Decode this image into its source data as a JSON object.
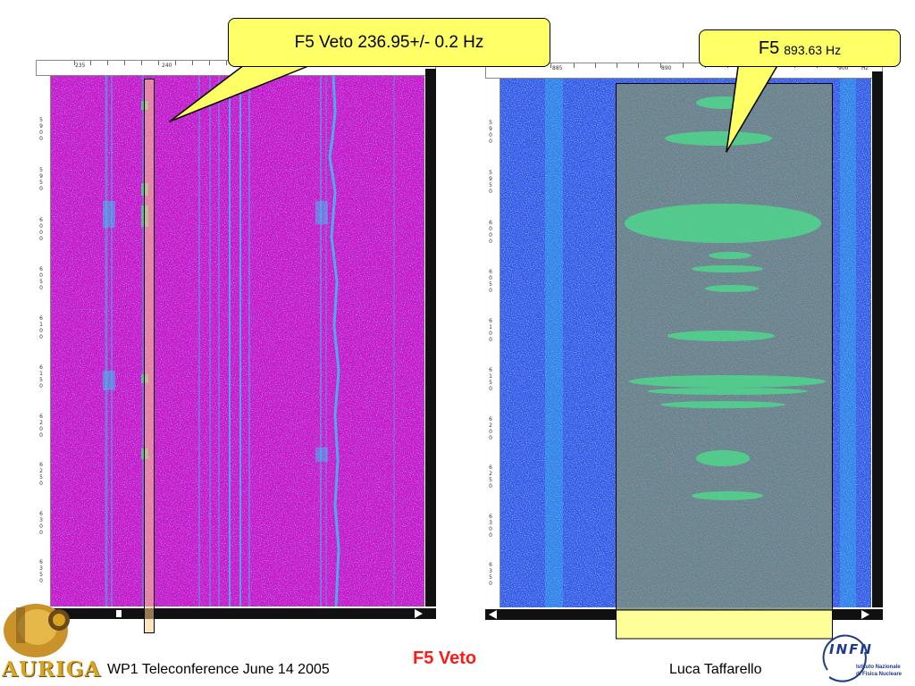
{
  "left_panel": {
    "freq_labels": [
      "235",
      "240"
    ],
    "time_labels": [
      "5900",
      "5950",
      "6000",
      "6050",
      "6100",
      "6150",
      "6200",
      "6250",
      "6300",
      "6350"
    ],
    "bg_color": "#cc19cc",
    "line_color": "#33c8f0"
  },
  "right_panel": {
    "freq_labels": [
      "885",
      "890",
      "895",
      "900"
    ],
    "unit_label": "Hz",
    "time_labels": [
      "5900",
      "5950",
      "6000",
      "6050",
      "6100",
      "6150",
      "6200",
      "6250",
      "6300",
      "6350"
    ],
    "bg_color": "#3a58e6",
    "highlight_color": "#4be08c"
  },
  "callouts": {
    "left": {
      "text": "F5 Veto 236.95+/- 0.2 Hz"
    },
    "right": {
      "prefix": "F5",
      "value": "893.63 Hz"
    }
  },
  "footer": {
    "event": "WP1 Teleconference June 14 2005",
    "title": "F5 Veto",
    "author": "Luca Taffarello",
    "auriga_logo_text": "AURIGA",
    "infn_logo_text": "INFN",
    "infn_subtext_1": "Istituto Nazionale",
    "infn_subtext_2": "di Fisica Nucleare"
  },
  "colors": {
    "callout_fill": "#ffff66",
    "title_red": "#ff1a1a",
    "auriga_gold": "#d9a420"
  }
}
